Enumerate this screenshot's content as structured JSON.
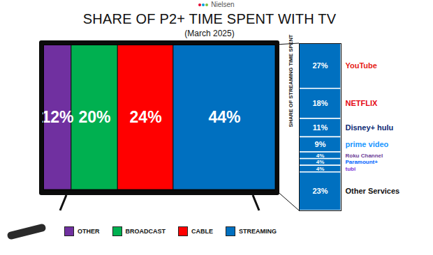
{
  "brand": "Nielsen",
  "chart_data": [
    {
      "type": "bar",
      "title": "SHARE OF P2+ TIME SPENT WITH TV",
      "subtitle": "(March 2025)",
      "orientation": "horizontal",
      "stacked": true,
      "data_labels": true,
      "tick_labels": false,
      "legend": "bottom",
      "xlim": [
        0,
        100
      ],
      "series": [
        {
          "name": "OTHER",
          "color": "#7030a0",
          "values": [
            12
          ],
          "value_labels": [
            "12%"
          ]
        },
        {
          "name": "BROADCAST",
          "color": "#00b050",
          "values": [
            20
          ],
          "value_labels": [
            "20%"
          ]
        },
        {
          "name": "CABLE",
          "color": "#ff0000",
          "values": [
            24
          ],
          "value_labels": [
            "24%"
          ]
        },
        {
          "name": "STREAMING",
          "color": "#0070c0",
          "values": [
            44
          ],
          "value_labels": [
            "44%"
          ]
        }
      ]
    },
    {
      "type": "bar",
      "stacked": true,
      "data_labels": true,
      "tick_labels": false,
      "ylabel": "SHARE OF STREAMING TIME SPENT",
      "ylim": [
        0,
        100
      ],
      "color": "#0070c0",
      "categories": [
        "YouTube",
        "NETFLIX",
        "Disney+ hulu",
        "prime video",
        "Roku Channel",
        "Paramount+",
        "tubi",
        "Other Services"
      ],
      "values": [
        27,
        18,
        11,
        9,
        4,
        4,
        4,
        23
      ],
      "value_labels": [
        "27%",
        "18%",
        "11%",
        "9%",
        "4%",
        "4%",
        "4%",
        "23%"
      ]
    }
  ]
}
